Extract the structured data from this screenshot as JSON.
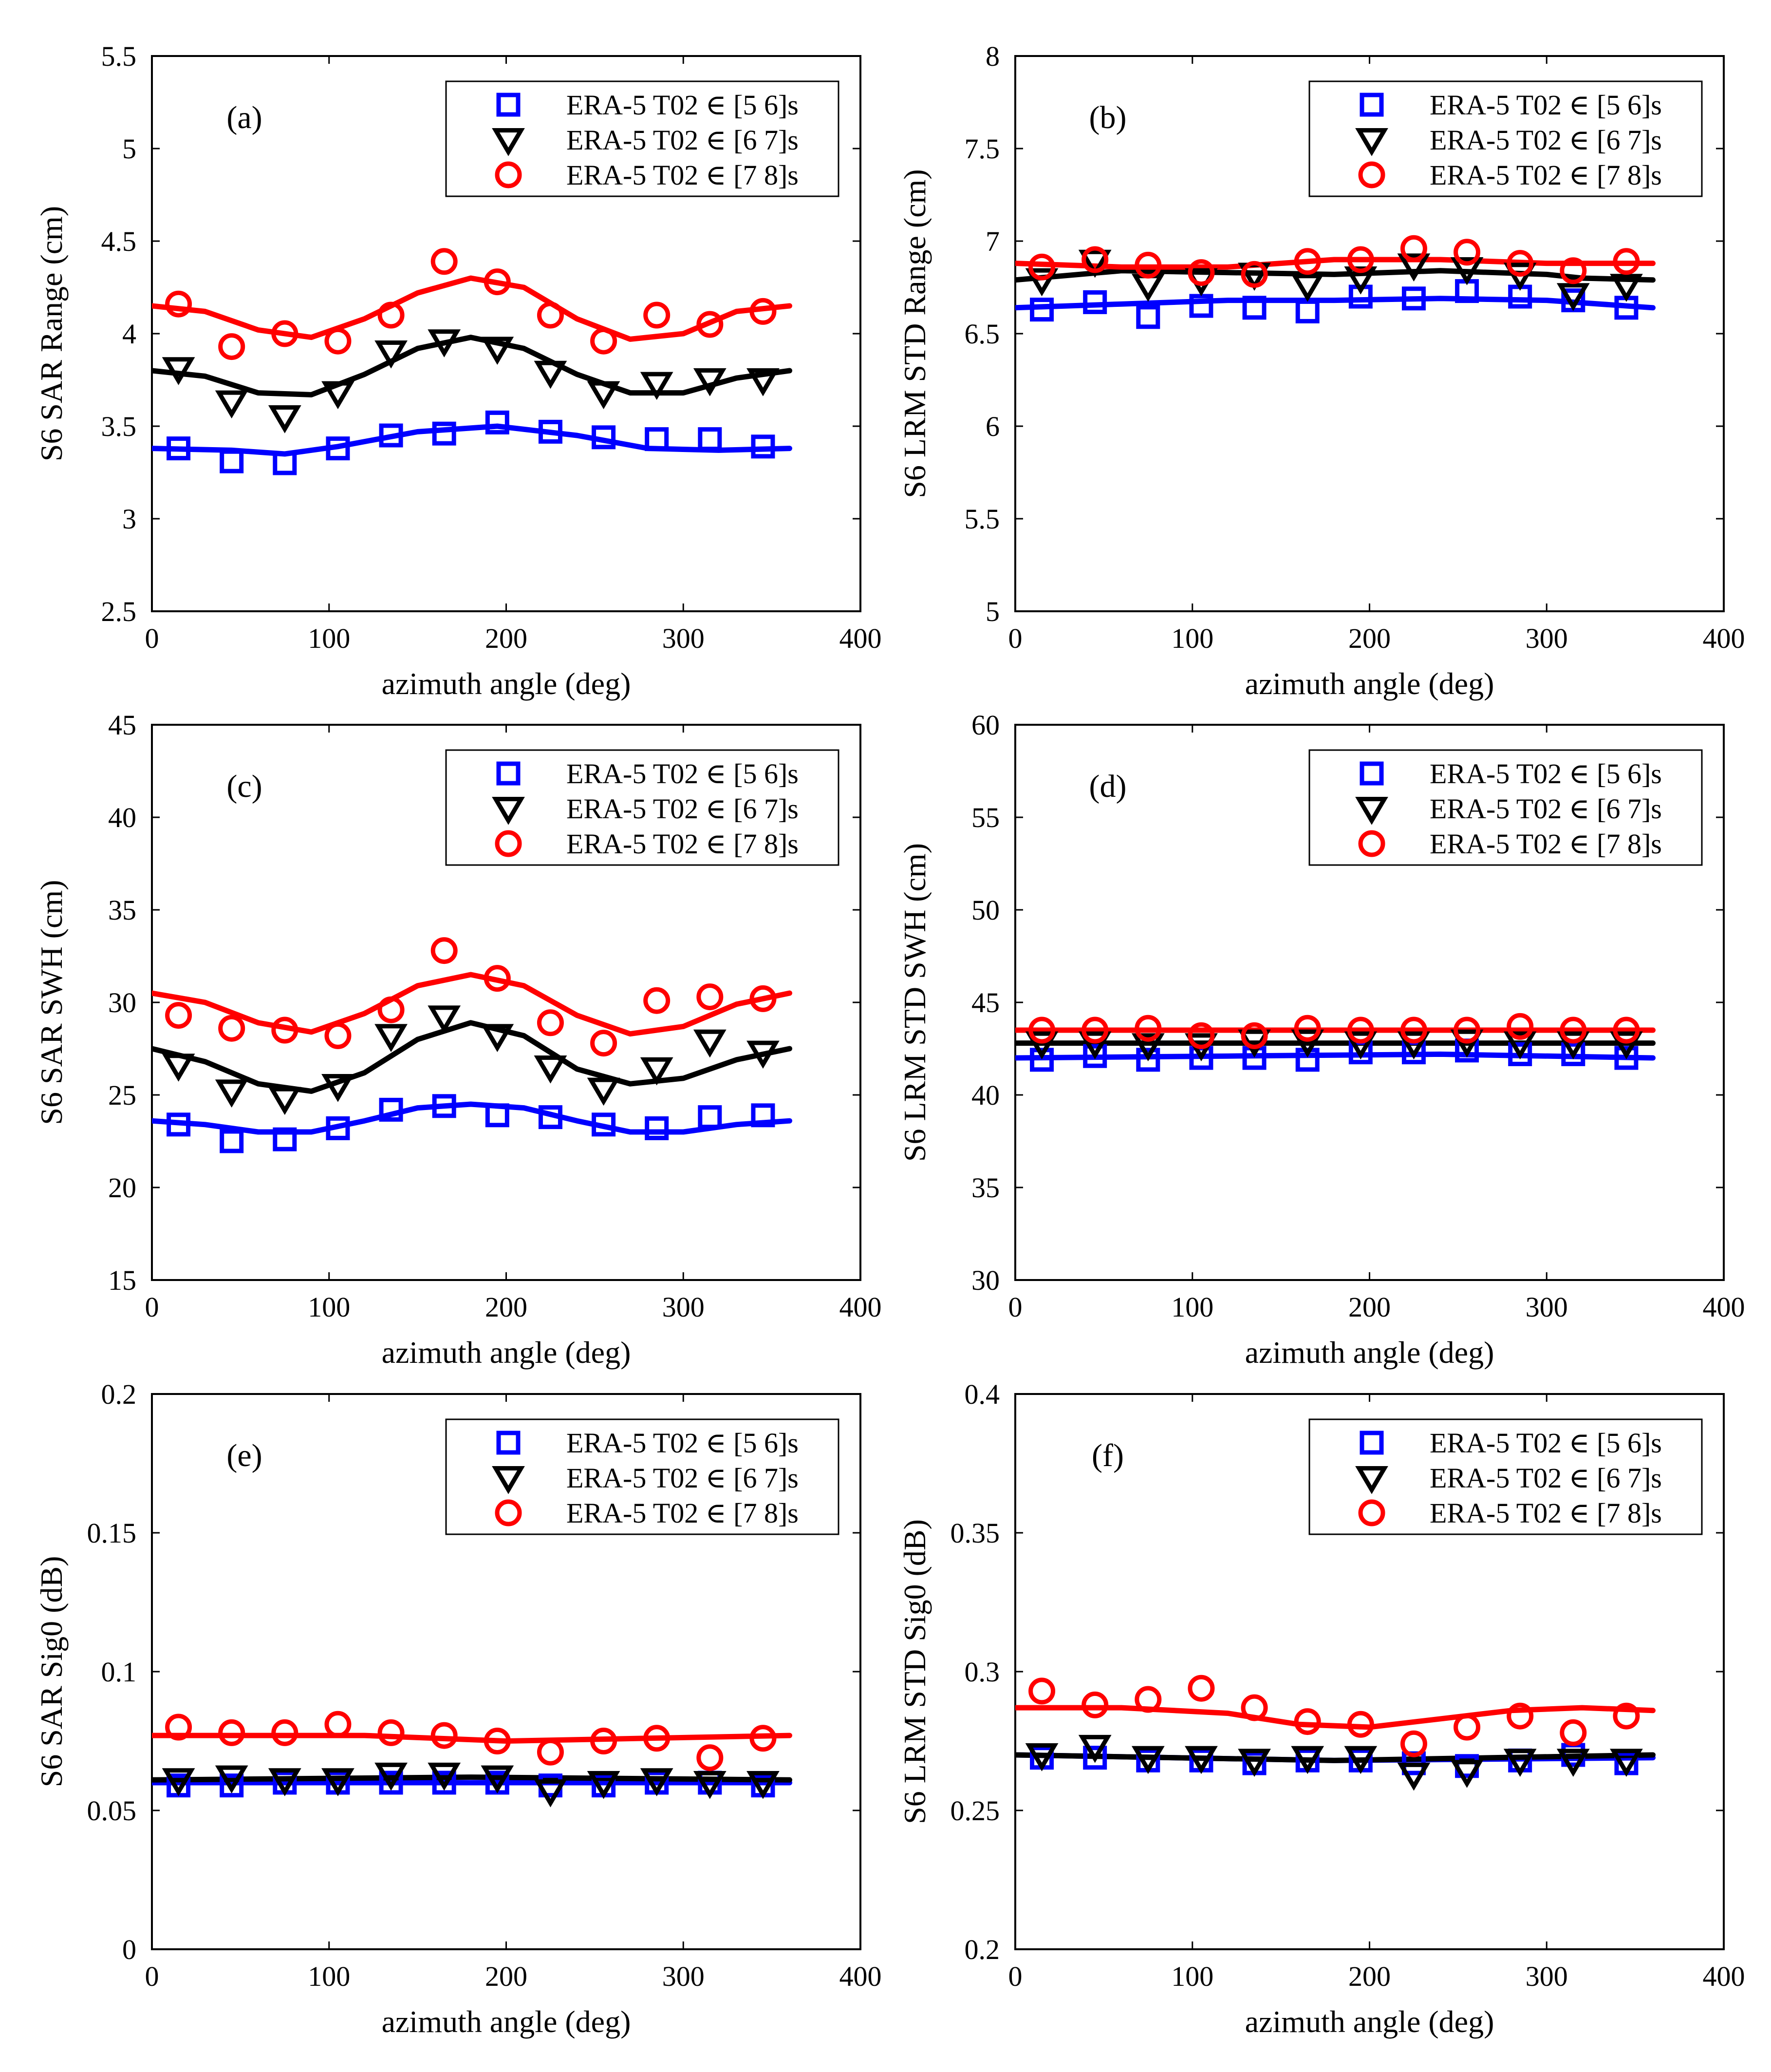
{
  "legend_labels": [
    "ERA-5 T02 ∈ [5 6]s",
    "ERA-5 T02 ∈ [6 7]s",
    "ERA-5 T02 ∈ [7 8]s"
  ],
  "series_colors": [
    "#0000ff",
    "#000000",
    "#ff0000"
  ],
  "series_markers": [
    "square",
    "triangle-down",
    "circle"
  ],
  "chart_data": [
    {
      "type": "scatter",
      "panel": "(a)",
      "xlabel": "azimuth angle (deg)",
      "ylabel": "S6 SAR Range (cm)",
      "xlim": [
        0,
        400
      ],
      "ylim": [
        2.5,
        5.5
      ],
      "xticks": [
        0,
        100,
        200,
        300,
        400
      ],
      "yticks": [
        2.5,
        3,
        3.5,
        4,
        4.5,
        5,
        5.5
      ],
      "yticklabels": [
        "2.5",
        "3",
        "3.5",
        "4",
        "4.5",
        "5",
        "5.5"
      ],
      "x": [
        15,
        45,
        75,
        105,
        135,
        165,
        195,
        225,
        255,
        285,
        315,
        345
      ],
      "series": [
        {
          "name": "ERA-5 T02 ∈ [5 6]s",
          "values": [
            3.38,
            3.31,
            3.3,
            3.38,
            3.45,
            3.46,
            3.52,
            3.47,
            3.44,
            3.43,
            3.43,
            3.39
          ],
          "fit": [
            [
              0,
              3.38
            ],
            [
              45,
              3.37
            ],
            [
              75,
              3.35
            ],
            [
              105,
              3.39
            ],
            [
              150,
              3.47
            ],
            [
              195,
              3.5
            ],
            [
              240,
              3.45
            ],
            [
              280,
              3.38
            ],
            [
              320,
              3.37
            ],
            [
              360,
              3.38
            ]
          ]
        },
        {
          "name": "ERA-5 T02 ∈ [6 7]s",
          "values": [
            3.81,
            3.63,
            3.55,
            3.68,
            3.9,
            3.96,
            3.92,
            3.79,
            3.68,
            3.73,
            3.75,
            3.75
          ],
          "fit": [
            [
              0,
              3.8
            ],
            [
              30,
              3.77
            ],
            [
              60,
              3.68
            ],
            [
              90,
              3.67
            ],
            [
              120,
              3.78
            ],
            [
              150,
              3.92
            ],
            [
              180,
              3.98
            ],
            [
              210,
              3.92
            ],
            [
              240,
              3.78
            ],
            [
              270,
              3.68
            ],
            [
              300,
              3.68
            ],
            [
              330,
              3.76
            ],
            [
              360,
              3.8
            ]
          ]
        },
        {
          "name": "ERA-5 T02 ∈ [7 8]s",
          "values": [
            4.16,
            3.93,
            4.0,
            3.96,
            4.1,
            4.39,
            4.28,
            4.1,
            3.96,
            4.1,
            4.05,
            4.12
          ],
          "fit": [
            [
              0,
              4.15
            ],
            [
              30,
              4.12
            ],
            [
              60,
              4.02
            ],
            [
              90,
              3.98
            ],
            [
              120,
              4.08
            ],
            [
              150,
              4.22
            ],
            [
              180,
              4.3
            ],
            [
              210,
              4.25
            ],
            [
              240,
              4.08
            ],
            [
              270,
              3.97
            ],
            [
              300,
              4.0
            ],
            [
              330,
              4.12
            ],
            [
              360,
              4.15
            ]
          ]
        }
      ]
    },
    {
      "type": "scatter",
      "panel": "(b)",
      "xlabel": "azimuth angle (deg)",
      "ylabel": "S6 LRM STD Range (cm)",
      "xlim": [
        0,
        400
      ],
      "ylim": [
        5,
        8
      ],
      "xticks": [
        0,
        100,
        200,
        300,
        400
      ],
      "yticks": [
        5,
        5.5,
        6,
        6.5,
        7,
        7.5,
        8
      ],
      "yticklabels": [
        "5",
        "5.5",
        "6",
        "6.5",
        "7",
        "7.5",
        "8"
      ],
      "x": [
        15,
        45,
        75,
        105,
        135,
        165,
        195,
        225,
        255,
        285,
        315,
        345
      ],
      "series": [
        {
          "name": "ERA-5 T02 ∈ [5 6]s",
          "values": [
            6.63,
            6.67,
            6.59,
            6.65,
            6.64,
            6.62,
            6.7,
            6.69,
            6.73,
            6.7,
            6.68,
            6.64
          ],
          "fit": [
            [
              0,
              6.64
            ],
            [
              60,
              6.66
            ],
            [
              120,
              6.68
            ],
            [
              180,
              6.68
            ],
            [
              240,
              6.69
            ],
            [
              300,
              6.68
            ],
            [
              360,
              6.64
            ]
          ]
        },
        {
          "name": "ERA-5 T02 ∈ [6 7]s",
          "values": [
            6.79,
            6.89,
            6.76,
            6.79,
            6.82,
            6.76,
            6.8,
            6.87,
            6.85,
            6.82,
            6.71,
            6.76
          ],
          "fit": [
            [
              0,
              6.79
            ],
            [
              60,
              6.84
            ],
            [
              120,
              6.83
            ],
            [
              180,
              6.82
            ],
            [
              240,
              6.84
            ],
            [
              300,
              6.82
            ],
            [
              320,
              6.8
            ],
            [
              360,
              6.79
            ]
          ]
        },
        {
          "name": "ERA-5 T02 ∈ [7 8]s",
          "values": [
            6.86,
            6.9,
            6.87,
            6.83,
            6.82,
            6.89,
            6.9,
            6.96,
            6.94,
            6.88,
            6.84,
            6.89
          ],
          "fit": [
            [
              0,
              6.88
            ],
            [
              60,
              6.86
            ],
            [
              120,
              6.86
            ],
            [
              180,
              6.9
            ],
            [
              240,
              6.9
            ],
            [
              300,
              6.88
            ],
            [
              360,
              6.88
            ]
          ]
        }
      ]
    },
    {
      "type": "scatter",
      "panel": "(c)",
      "xlabel": "azimuth angle (deg)",
      "ylabel": "S6 SAR SWH (cm)",
      "xlim": [
        0,
        400
      ],
      "ylim": [
        15,
        45
      ],
      "xticks": [
        0,
        100,
        200,
        300,
        400
      ],
      "yticks": [
        15,
        20,
        25,
        30,
        35,
        40,
        45
      ],
      "yticklabels": [
        "15",
        "20",
        "25",
        "30",
        "35",
        "40",
        "45"
      ],
      "x": [
        15,
        45,
        75,
        105,
        135,
        165,
        195,
        225,
        255,
        285,
        315,
        345
      ],
      "series": [
        {
          "name": "ERA-5 T02 ∈ [5 6]s",
          "values": [
            23.4,
            22.5,
            22.6,
            23.2,
            24.2,
            24.4,
            23.9,
            23.8,
            23.4,
            23.2,
            23.8,
            23.9
          ],
          "fit": [
            [
              0,
              23.6
            ],
            [
              30,
              23.4
            ],
            [
              60,
              23.0
            ],
            [
              90,
              23.0
            ],
            [
              120,
              23.6
            ],
            [
              150,
              24.3
            ],
            [
              180,
              24.5
            ],
            [
              210,
              24.3
            ],
            [
              240,
              23.6
            ],
            [
              270,
              23.0
            ],
            [
              300,
              23.0
            ],
            [
              330,
              23.4
            ],
            [
              360,
              23.6
            ]
          ]
        },
        {
          "name": "ERA-5 T02 ∈ [6 7]s",
          "values": [
            26.6,
            25.2,
            24.8,
            25.5,
            28.2,
            29.2,
            28.2,
            26.5,
            25.3,
            26.4,
            27.9,
            27.3
          ],
          "fit": [
            [
              0,
              27.5
            ],
            [
              30,
              26.8
            ],
            [
              60,
              25.6
            ],
            [
              90,
              25.2
            ],
            [
              120,
              26.2
            ],
            [
              150,
              28.0
            ],
            [
              180,
              28.9
            ],
            [
              210,
              28.2
            ],
            [
              240,
              26.4
            ],
            [
              270,
              25.6
            ],
            [
              300,
              25.9
            ],
            [
              330,
              26.9
            ],
            [
              360,
              27.5
            ]
          ]
        },
        {
          "name": "ERA-5 T02 ∈ [7 8]s",
          "values": [
            29.3,
            28.6,
            28.5,
            28.2,
            29.6,
            32.8,
            31.3,
            28.9,
            27.8,
            30.1,
            30.3,
            30.2
          ],
          "fit": [
            [
              0,
              30.5
            ],
            [
              30,
              30.0
            ],
            [
              60,
              28.9
            ],
            [
              90,
              28.4
            ],
            [
              120,
              29.4
            ],
            [
              150,
              30.9
            ],
            [
              180,
              31.5
            ],
            [
              210,
              30.9
            ],
            [
              240,
              29.3
            ],
            [
              270,
              28.3
            ],
            [
              300,
              28.7
            ],
            [
              330,
              29.9
            ],
            [
              360,
              30.5
            ]
          ]
        }
      ]
    },
    {
      "type": "scatter",
      "panel": "(d)",
      "xlabel": "azimuth angle (deg)",
      "ylabel": "S6 LRM STD SWH (cm)",
      "xlim": [
        0,
        400
      ],
      "ylim": [
        30,
        60
      ],
      "xticks": [
        0,
        100,
        200,
        300,
        400
      ],
      "yticks": [
        30,
        35,
        40,
        45,
        50,
        55,
        60
      ],
      "yticklabels": [
        "30",
        "35",
        "40",
        "45",
        "50",
        "55",
        "60"
      ],
      "x": [
        15,
        45,
        75,
        105,
        135,
        165,
        195,
        225,
        255,
        285,
        315,
        345
      ],
      "series": [
        {
          "name": "ERA-5 T02 ∈ [5 6]s",
          "values": [
            41.9,
            42.1,
            41.9,
            42.0,
            42.0,
            41.9,
            42.3,
            42.3,
            42.4,
            42.2,
            42.2,
            42.0
          ],
          "fit": [
            [
              0,
              42.0
            ],
            [
              120,
              42.1
            ],
            [
              240,
              42.2
            ],
            [
              360,
              42.0
            ]
          ]
        },
        {
          "name": "ERA-5 T02 ∈ [6 7]s",
          "values": [
            42.8,
            42.8,
            42.7,
            42.7,
            42.9,
            42.9,
            42.8,
            42.8,
            42.9,
            42.8,
            42.8,
            42.8
          ],
          "fit": [
            [
              0,
              42.8
            ],
            [
              180,
              42.8
            ],
            [
              360,
              42.8
            ]
          ]
        },
        {
          "name": "ERA-5 T02 ∈ [7 8]s",
          "values": [
            43.5,
            43.5,
            43.6,
            43.2,
            43.2,
            43.6,
            43.5,
            43.5,
            43.5,
            43.7,
            43.5,
            43.5
          ],
          "fit": [
            [
              0,
              43.5
            ],
            [
              180,
              43.5
            ],
            [
              360,
              43.5
            ]
          ]
        }
      ]
    },
    {
      "type": "scatter",
      "panel": "(e)",
      "xlabel": "azimuth angle (deg)",
      "ylabel": "S6 SAR Sig0 (dB)",
      "xlim": [
        0,
        400
      ],
      "ylim": [
        0,
        0.2
      ],
      "xticks": [
        0,
        100,
        200,
        300,
        400
      ],
      "yticks": [
        0,
        0.05,
        0.1,
        0.15,
        0.2
      ],
      "yticklabels": [
        "0",
        "0.05",
        "0.1",
        "0.15",
        "0.2"
      ],
      "x": [
        15,
        45,
        75,
        105,
        135,
        165,
        195,
        225,
        255,
        285,
        315,
        345
      ],
      "series": [
        {
          "name": "ERA-5 T02 ∈ [5 6]s",
          "values": [
            0.059,
            0.059,
            0.06,
            0.06,
            0.06,
            0.06,
            0.06,
            0.059,
            0.059,
            0.06,
            0.06,
            0.059
          ],
          "fit": [
            [
              0,
              0.06
            ],
            [
              180,
              0.06
            ],
            [
              360,
              0.06
            ]
          ]
        },
        {
          "name": "ERA-5 T02 ∈ [6 7]s",
          "values": [
            0.061,
            0.062,
            0.061,
            0.061,
            0.063,
            0.063,
            0.062,
            0.057,
            0.06,
            0.061,
            0.06,
            0.06
          ],
          "fit": [
            [
              0,
              0.061
            ],
            [
              180,
              0.062
            ],
            [
              360,
              0.061
            ]
          ]
        },
        {
          "name": "ERA-5 T02 ∈ [7 8]s",
          "values": [
            0.08,
            0.078,
            0.078,
            0.081,
            0.078,
            0.077,
            0.075,
            0.071,
            0.075,
            0.076,
            0.069,
            0.076
          ],
          "fit": [
            [
              0,
              0.077
            ],
            [
              120,
              0.077
            ],
            [
              200,
              0.075
            ],
            [
              280,
              0.076
            ],
            [
              360,
              0.077
            ]
          ]
        }
      ]
    },
    {
      "type": "scatter",
      "panel": "(f)",
      "xlabel": "azimuth angle (deg)",
      "ylabel": "S6 LRM STD Sig0 (dB)",
      "xlim": [
        0,
        400
      ],
      "ylim": [
        0.2,
        0.4
      ],
      "xticks": [
        0,
        100,
        200,
        300,
        400
      ],
      "yticks": [
        0.2,
        0.25,
        0.3,
        0.35,
        0.4
      ],
      "yticklabels": [
        "0.2",
        "0.25",
        "0.3",
        "0.35",
        "0.4"
      ],
      "x": [
        15,
        45,
        75,
        105,
        135,
        165,
        195,
        225,
        255,
        285,
        315,
        345
      ],
      "series": [
        {
          "name": "ERA-5 T02 ∈ [5 6]s",
          "values": [
            0.269,
            0.269,
            0.268,
            0.268,
            0.267,
            0.268,
            0.268,
            0.267,
            0.266,
            0.268,
            0.27,
            0.267
          ],
          "fit": [
            [
              0,
              0.27
            ],
            [
              180,
              0.268
            ],
            [
              360,
              0.269
            ]
          ]
        },
        {
          "name": "ERA-5 T02 ∈ [6 7]s",
          "values": [
            0.27,
            0.273,
            0.269,
            0.269,
            0.268,
            0.269,
            0.269,
            0.263,
            0.264,
            0.268,
            0.268,
            0.268
          ],
          "fit": [
            [
              0,
              0.27
            ],
            [
              180,
              0.268
            ],
            [
              360,
              0.27
            ]
          ]
        },
        {
          "name": "ERA-5 T02 ∈ [7 8]s",
          "values": [
            0.293,
            0.288,
            0.29,
            0.294,
            0.287,
            0.282,
            0.281,
            0.274,
            0.28,
            0.284,
            0.278,
            0.284
          ],
          "fit": [
            [
              0,
              0.287
            ],
            [
              60,
              0.287
            ],
            [
              120,
              0.285
            ],
            [
              160,
              0.281
            ],
            [
              200,
              0.28
            ],
            [
              240,
              0.283
            ],
            [
              280,
              0.286
            ],
            [
              320,
              0.287
            ],
            [
              360,
              0.286
            ]
          ]
        }
      ]
    }
  ]
}
